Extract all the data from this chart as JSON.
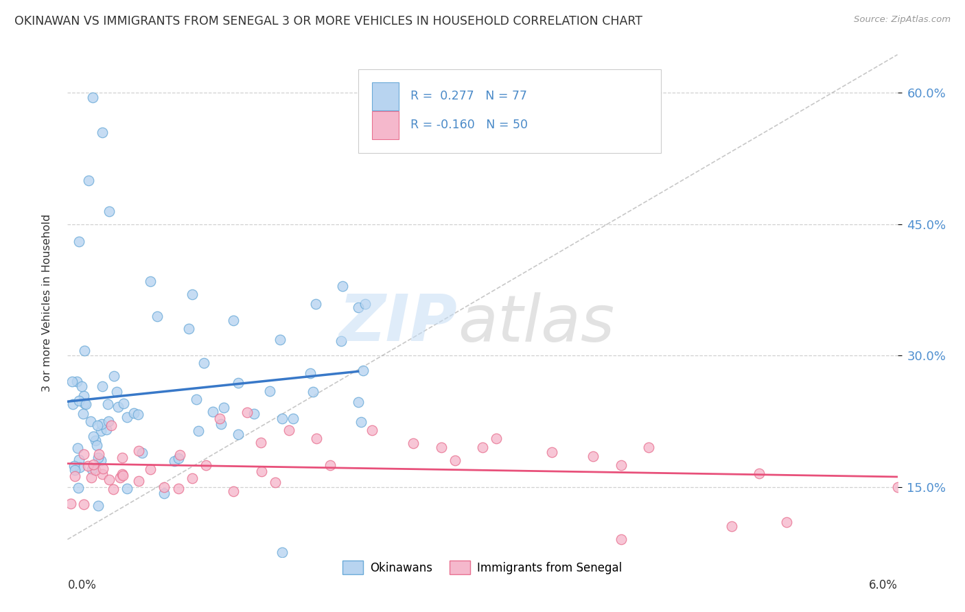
{
  "title": "OKINAWAN VS IMMIGRANTS FROM SENEGAL 3 OR MORE VEHICLES IN HOUSEHOLD CORRELATION CHART",
  "source_text": "Source: ZipAtlas.com",
  "ylabel": "3 or more Vehicles in Household",
  "ylabel_ticks": [
    "15.0%",
    "30.0%",
    "45.0%",
    "60.0%"
  ],
  "ylabel_tick_vals": [
    0.15,
    0.3,
    0.45,
    0.6
  ],
  "xmin": 0.0,
  "xmax": 0.06,
  "ymin": 0.07,
  "ymax": 0.65,
  "r_okinawan": 0.277,
  "n_okinawan": 77,
  "r_senegal": -0.16,
  "n_senegal": 50,
  "color_okinawan_fill": "#b8d4f0",
  "color_okinawan_edge": "#6aaad8",
  "color_senegal_fill": "#f5b8cc",
  "color_senegal_edge": "#e87090",
  "color_okinawan_line": "#3878c8",
  "color_senegal_line": "#e8507a",
  "color_ref_line": "#aaaaaa",
  "color_grid": "#cccccc",
  "legend_label_okinawan": "Okinawans",
  "legend_label_senegal": "Immigrants from Senegal",
  "watermark_zip_color": "#c8dff5",
  "watermark_atlas_color": "#c0c0c0"
}
